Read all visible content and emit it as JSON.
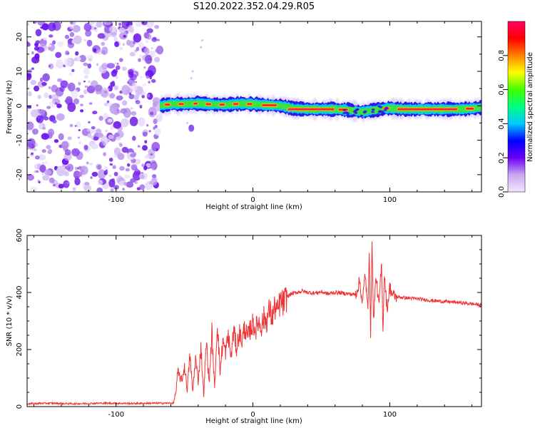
{
  "title": "S120.2022.352.04.29.R05",
  "chart_data": [
    {
      "type": "heatmap",
      "xlabel": "Height of straight line (km)",
      "ylabel": "Frequency (Hz)",
      "xlim": [
        -165,
        167
      ],
      "ylim": [
        -25,
        24.5
      ],
      "x_ticks": [
        -100,
        0,
        100
      ],
      "y_ticks": [
        -20,
        -10,
        0,
        10,
        20
      ],
      "noise_region_x": [
        -165,
        -68
      ],
      "ridge": {
        "x": [
          -68,
          -60,
          -50,
          -40,
          -30,
          -20,
          -10,
          0,
          10,
          20,
          30,
          40,
          50,
          60,
          70,
          75,
          80,
          85,
          90,
          95,
          100,
          110,
          120,
          130,
          140,
          150,
          160,
          167
        ],
        "frequency": [
          0,
          0.5,
          0.5,
          0.7,
          0.4,
          0.3,
          0.6,
          0.5,
          0.2,
          0,
          -0.8,
          -1,
          -1,
          -1,
          -1.2,
          -1.5,
          -1.8,
          -1.4,
          -1.2,
          -0.9,
          -0.7,
          -1,
          -1,
          -1,
          -1,
          -1,
          -0.8,
          -0.5
        ]
      },
      "colorbar": {
        "label": "Normalized spectral amplitude",
        "range": [
          0,
          1
        ],
        "ticks": [
          0.0,
          0.2,
          0.4,
          0.6,
          0.8
        ],
        "colormap": [
          "#f0e6ff",
          "#c9a8f0",
          "#6a00f4",
          "#0000ff",
          "#00c8ff",
          "#00ff80",
          "#40ff00",
          "#ffff00",
          "#ff8000",
          "#ff0000",
          "#ff0066"
        ]
      }
    },
    {
      "type": "line",
      "xlabel": "Height of straight line (km)",
      "ylabel": "SNR (10 * v/v)",
      "xlim": [
        -165,
        167
      ],
      "ylim": [
        0,
        600
      ],
      "x_ticks": [
        -100,
        0,
        100
      ],
      "y_ticks": [
        0,
        200,
        400,
        600
      ],
      "color": "#ee3333",
      "series": [
        {
          "x": [
            -165,
            -150,
            -130,
            -110,
            -90,
            -70,
            -58,
            -56,
            -55,
            -52,
            -50,
            -48,
            -46,
            -44,
            -42,
            -40,
            -38,
            -36,
            -34,
            -32,
            -30,
            -28,
            -26,
            -24,
            -22,
            -20,
            -18,
            -16,
            -14,
            -12,
            -10,
            -8,
            -6,
            -4,
            -2,
            0,
            2,
            4,
            6,
            8,
            10,
            12,
            14,
            16,
            18,
            20,
            22,
            25,
            28,
            32,
            36,
            40,
            45,
            50,
            55,
            60,
            65,
            70,
            75,
            78,
            80,
            82,
            84,
            85,
            86,
            87,
            88,
            90,
            92,
            94,
            95,
            96,
            98,
            100,
            102,
            105,
            110,
            115,
            120,
            130,
            140,
            150,
            160,
            167
          ],
          "y": [
            10,
            12,
            10,
            12,
            11,
            12,
            12,
            60,
            120,
            90,
            140,
            60,
            180,
            50,
            170,
            90,
            210,
            40,
            230,
            80,
            260,
            60,
            300,
            120,
            230,
            190,
            250,
            170,
            270,
            200,
            260,
            230,
            280,
            240,
            270,
            290,
            270,
            300,
            280,
            310,
            300,
            340,
            310,
            350,
            330,
            370,
            360,
            385,
            395,
            400,
            405,
            400,
            398,
            402,
            395,
            400,
            398,
            395,
            392,
            440,
            360,
            470,
            330,
            560,
            240,
            600,
            300,
            460,
            350,
            500,
            270,
            470,
            340,
            420,
            390,
            385,
            382,
            380,
            378,
            372,
            368,
            365,
            360,
            356
          ]
        }
      ]
    }
  ]
}
